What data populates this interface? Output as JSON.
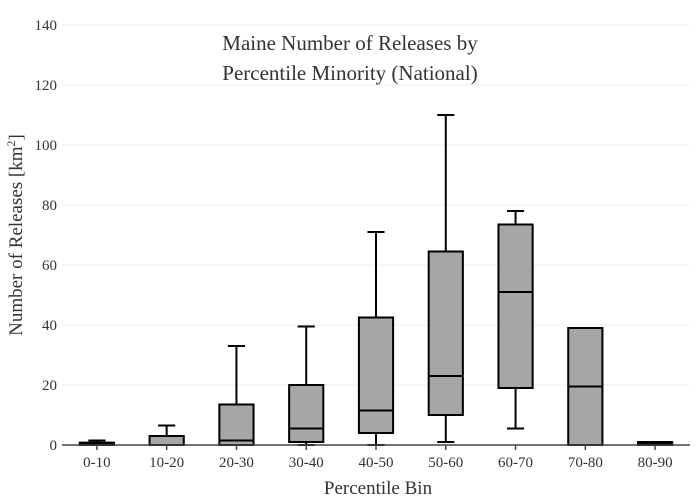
{
  "chart_data": {
    "type": "box",
    "title_lines": [
      "Maine Number of Releases by",
      "Percentile Minority (National)"
    ],
    "xlabel": "Percentile Bin",
    "ylabel": "Number of Releases  [km",
    "ylabel_sup": "2",
    "ylabel_end": "]",
    "ylim": [
      0,
      140
    ],
    "yticks": [
      "0",
      "20",
      "40",
      "60",
      "80",
      "100",
      "120",
      "140"
    ],
    "grid": true,
    "categories": [
      "0-10",
      "10-20",
      "20-30",
      "30-40",
      "40-50",
      "50-60",
      "60-70",
      "70-80",
      "80-90"
    ],
    "boxes": [
      {
        "min": 0,
        "q1": 0,
        "median": 0.5,
        "q3": 0.8,
        "max": 1.5
      },
      {
        "min": 0,
        "q1": 0,
        "median": 0,
        "q3": 3,
        "max": 6.5
      },
      {
        "min": 0,
        "q1": 0,
        "median": 1.5,
        "q3": 13.5,
        "max": 33
      },
      {
        "min": 0,
        "q1": 1,
        "median": 5.5,
        "q3": 20,
        "max": 39.5
      },
      {
        "min": 0,
        "q1": 4,
        "median": 11.5,
        "q3": 42.5,
        "max": 71
      },
      {
        "min": 1,
        "q1": 10,
        "median": 23,
        "q3": 64.5,
        "max": 110
      },
      {
        "min": 5.5,
        "q1": 19,
        "median": 51,
        "q3": 73.5,
        "max": 78
      },
      {
        "min": 0,
        "q1": 0,
        "median": 19.5,
        "q3": 39,
        "max": 39
      },
      {
        "min": 0,
        "q1": 0,
        "median": 0.5,
        "q3": 1,
        "max": 1
      }
    ]
  }
}
